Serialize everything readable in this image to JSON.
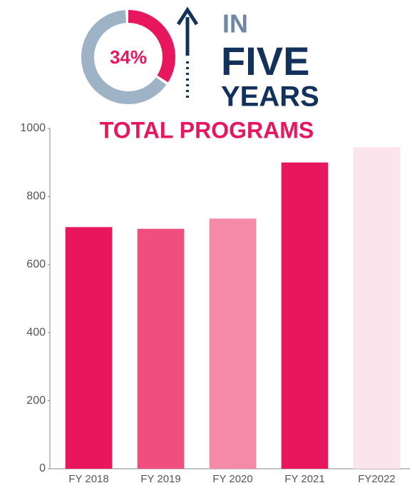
{
  "chart_data": {
    "type": "bar",
    "title": "TOTAL PROGRAMS",
    "callout": {
      "percent": 34,
      "percent_label": "34%",
      "percent_color": "#e8175d",
      "rest_color": "#9fb3c6",
      "lines": [
        "IN",
        "FIVE",
        "YEARS"
      ]
    },
    "categories": [
      "FY 2018",
      "FY 2019",
      "FY 2020",
      "FY 2021",
      "FY2022"
    ],
    "values": [
      710,
      705,
      735,
      900,
      945
    ],
    "colors": [
      "#e8175d",
      "#f04e7f",
      "#f589a8",
      "#e8175d",
      "#fce4ec"
    ],
    "ylim": [
      0,
      1000
    ],
    "yticks": [
      0,
      200,
      400,
      600,
      800,
      1000
    ],
    "grid": false
  }
}
